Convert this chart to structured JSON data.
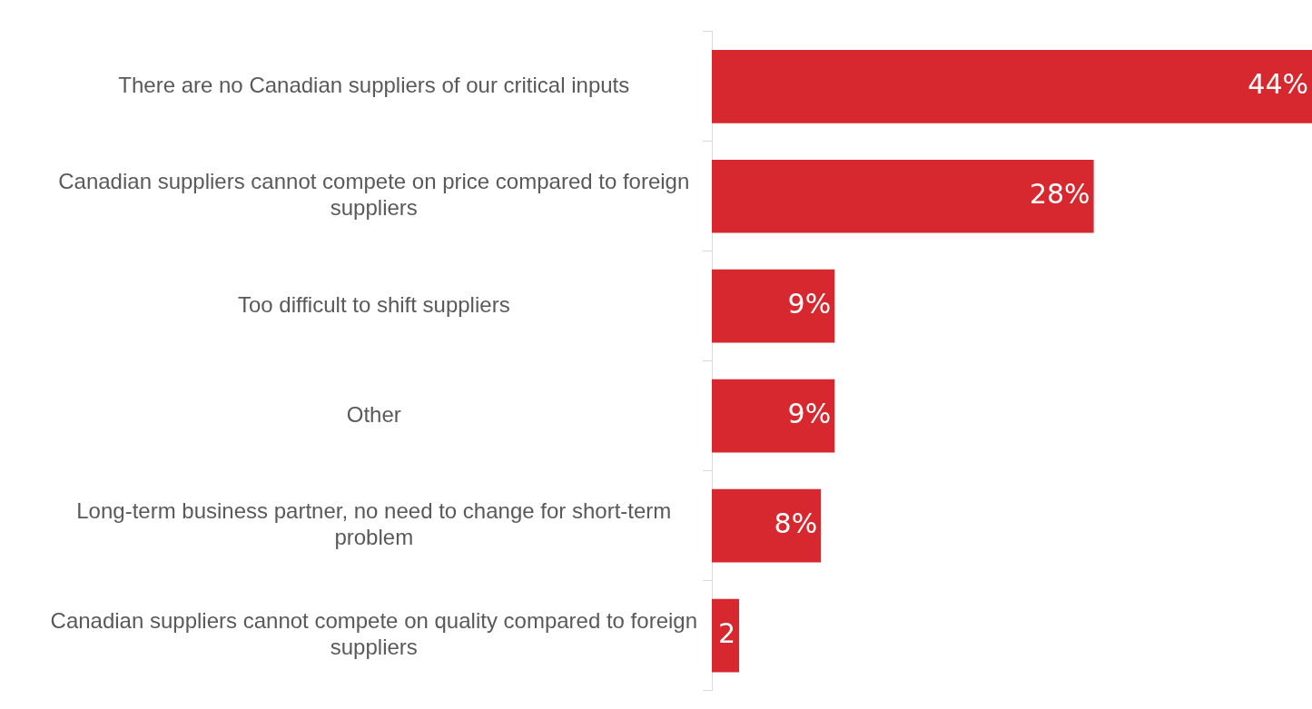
{
  "chart_data": {
    "type": "bar",
    "orientation": "horizontal",
    "categories": [
      "There are no Canadian suppliers of our critical inputs",
      "Canadian suppliers cannot compete on price compared to foreign suppliers",
      "Too difficult to shift suppliers",
      "Other",
      "Long-term business partner, no need to change for short-term problem",
      "Canadian suppliers cannot compete on quality compared to foreign suppliers"
    ],
    "values": [
      44,
      28,
      9,
      9,
      8,
      2
    ],
    "value_labels": [
      "44%",
      "28%",
      "9%",
      "9%",
      "8%",
      "2"
    ],
    "color": "#d7282f"
  }
}
